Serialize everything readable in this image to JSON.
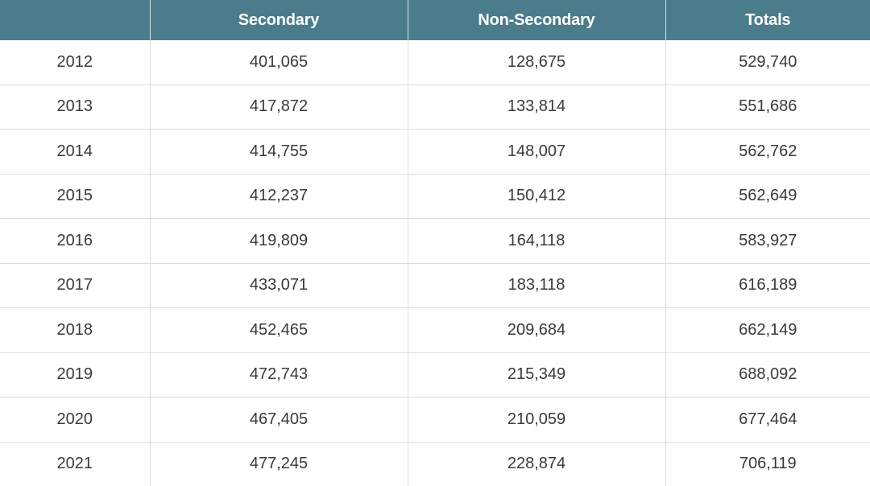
{
  "table": {
    "headers": [
      "",
      "Secondary",
      "Non-Secondary",
      "Totals"
    ],
    "rows": [
      [
        "2012",
        "401,065",
        "128,675",
        "529,740"
      ],
      [
        "2013",
        "417,872",
        "133,814",
        "551,686"
      ],
      [
        "2014",
        "414,755",
        "148,007",
        "562,762"
      ],
      [
        "2015",
        "412,237",
        "150,412",
        "562,649"
      ],
      [
        "2016",
        "419,809",
        "164,118",
        "583,927"
      ],
      [
        "2017",
        "433,071",
        "183,118",
        "616,189"
      ],
      [
        "2018",
        "452,465",
        "209,684",
        "662,149"
      ],
      [
        "2019",
        "472,743",
        "215,349",
        "688,092"
      ],
      [
        "2020",
        "467,405",
        "210,059",
        "677,464"
      ],
      [
        "2021",
        "477,245",
        "228,874",
        "706,119"
      ]
    ]
  },
  "colors": {
    "header_background": "#4a7c8c",
    "header_text": "#ffffff",
    "cell_text": "#3a3a3a",
    "grid_line": "#dcdcdc"
  }
}
